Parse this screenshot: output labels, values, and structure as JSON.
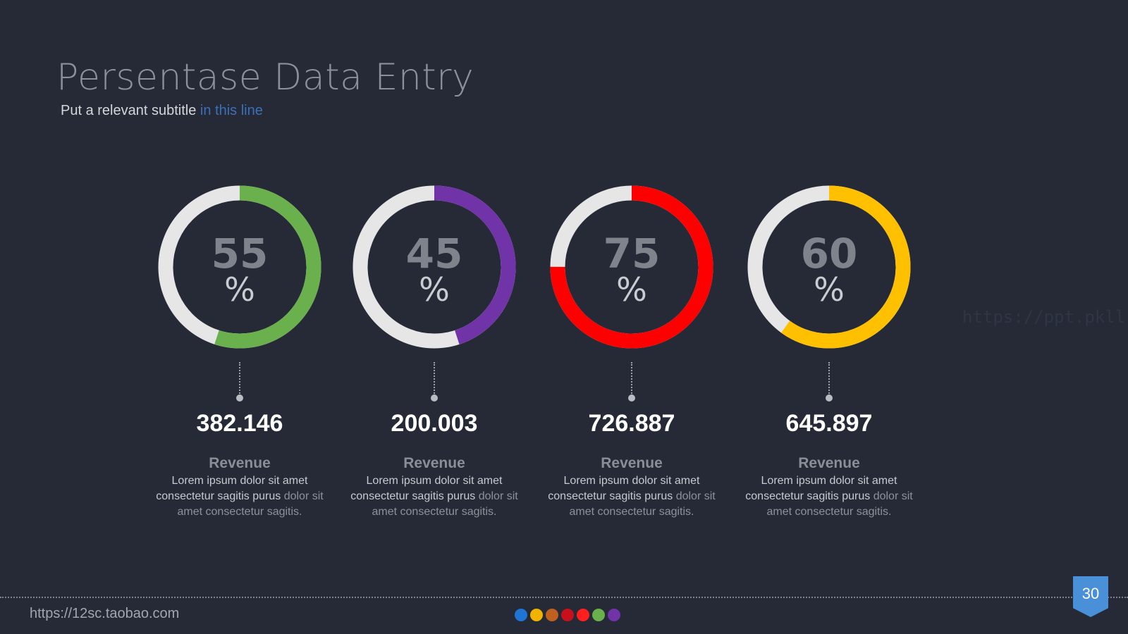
{
  "header": {
    "title": "Persentase Data Entry",
    "subtitle_plain": "Put a relevant subtitle ",
    "subtitle_highlight": "in this line"
  },
  "watermark": "https://ppt.pkll.de",
  "cards": [
    {
      "percent": 55,
      "percent_text": "55",
      "percent_sign": "%",
      "color": "#6ab04c",
      "amount": "382.146",
      "label": "Revenue",
      "desc_line1": "Lorem ipsum dolor sit amet",
      "desc_line2_main": "consectetur sagitis purus ",
      "desc_line2_dim": "dolor sit",
      "desc_line3": "amet consectetur sagitis."
    },
    {
      "percent": 45,
      "percent_text": "45",
      "percent_sign": "%",
      "color": "#7033a8",
      "amount": "200.003",
      "label": "Revenue",
      "desc_line1": "Lorem ipsum dolor sit amet",
      "desc_line2_main": "consectetur sagitis purus ",
      "desc_line2_dim": "dolor sit",
      "desc_line3": "amet consectetur sagitis."
    },
    {
      "percent": 75,
      "percent_text": "75",
      "percent_sign": "%",
      "color": "#ff0000",
      "amount": "726.887",
      "label": "Revenue",
      "desc_line1": "Lorem ipsum dolor sit amet",
      "desc_line2_main": "consectetur sagitis purus ",
      "desc_line2_dim": "dolor sit",
      "desc_line3": "amet consectetur sagitis."
    },
    {
      "percent": 60,
      "percent_text": "60",
      "percent_sign": "%",
      "color": "#ffc000",
      "amount": "645.897",
      "label": "Revenue",
      "desc_line1": "Lorem ipsum dolor sit amet",
      "desc_line2_main": "consectetur sagitis purus ",
      "desc_line2_dim": "dolor sit",
      "desc_line3": "amet consectetur sagitis."
    }
  ],
  "ring_track_color": "#e6e6e6",
  "footer": {
    "url": "https://12sc.taobao.com",
    "dot_colors": [
      "#1f74d4",
      "#f0b400",
      "#c0601f",
      "#c8101c",
      "#ff1f1f",
      "#6ab04c",
      "#7033a8"
    ],
    "page_number": "30"
  }
}
